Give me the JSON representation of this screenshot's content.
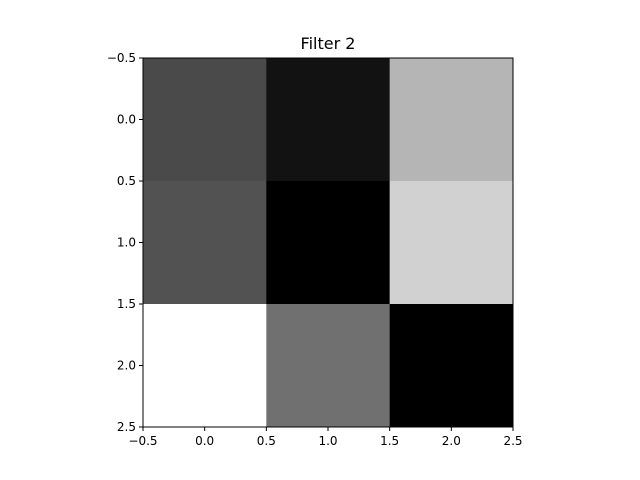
{
  "chart_data": {
    "type": "heatmap",
    "title": "Filter 2",
    "xlabel": "",
    "ylabel": "",
    "colormap": "gray",
    "value_range": [
      0,
      1
    ],
    "rows": 3,
    "cols": 3,
    "values": [
      [
        0.29,
        0.07,
        0.71
      ],
      [
        0.32,
        0.0,
        0.82
      ],
      [
        1.0,
        0.44,
        0.0
      ]
    ],
    "xlim": [
      -0.5,
      2.5
    ],
    "ylim": [
      2.5,
      -0.5
    ],
    "y_inverted": true,
    "x_ticks": [
      -0.5,
      0.0,
      0.5,
      1.0,
      1.5,
      2.0,
      2.5
    ],
    "x_tick_labels": [
      "−0.5",
      "0.0",
      "0.5",
      "1.0",
      "1.5",
      "2.0",
      "2.5"
    ],
    "y_ticks": [
      -0.5,
      0.0,
      0.5,
      1.0,
      1.5,
      2.0,
      2.5
    ],
    "y_tick_labels": [
      "−0.5",
      "0.0",
      "0.5",
      "1.0",
      "1.5",
      "2.0",
      "2.5"
    ],
    "grid": false,
    "legend": "none"
  }
}
